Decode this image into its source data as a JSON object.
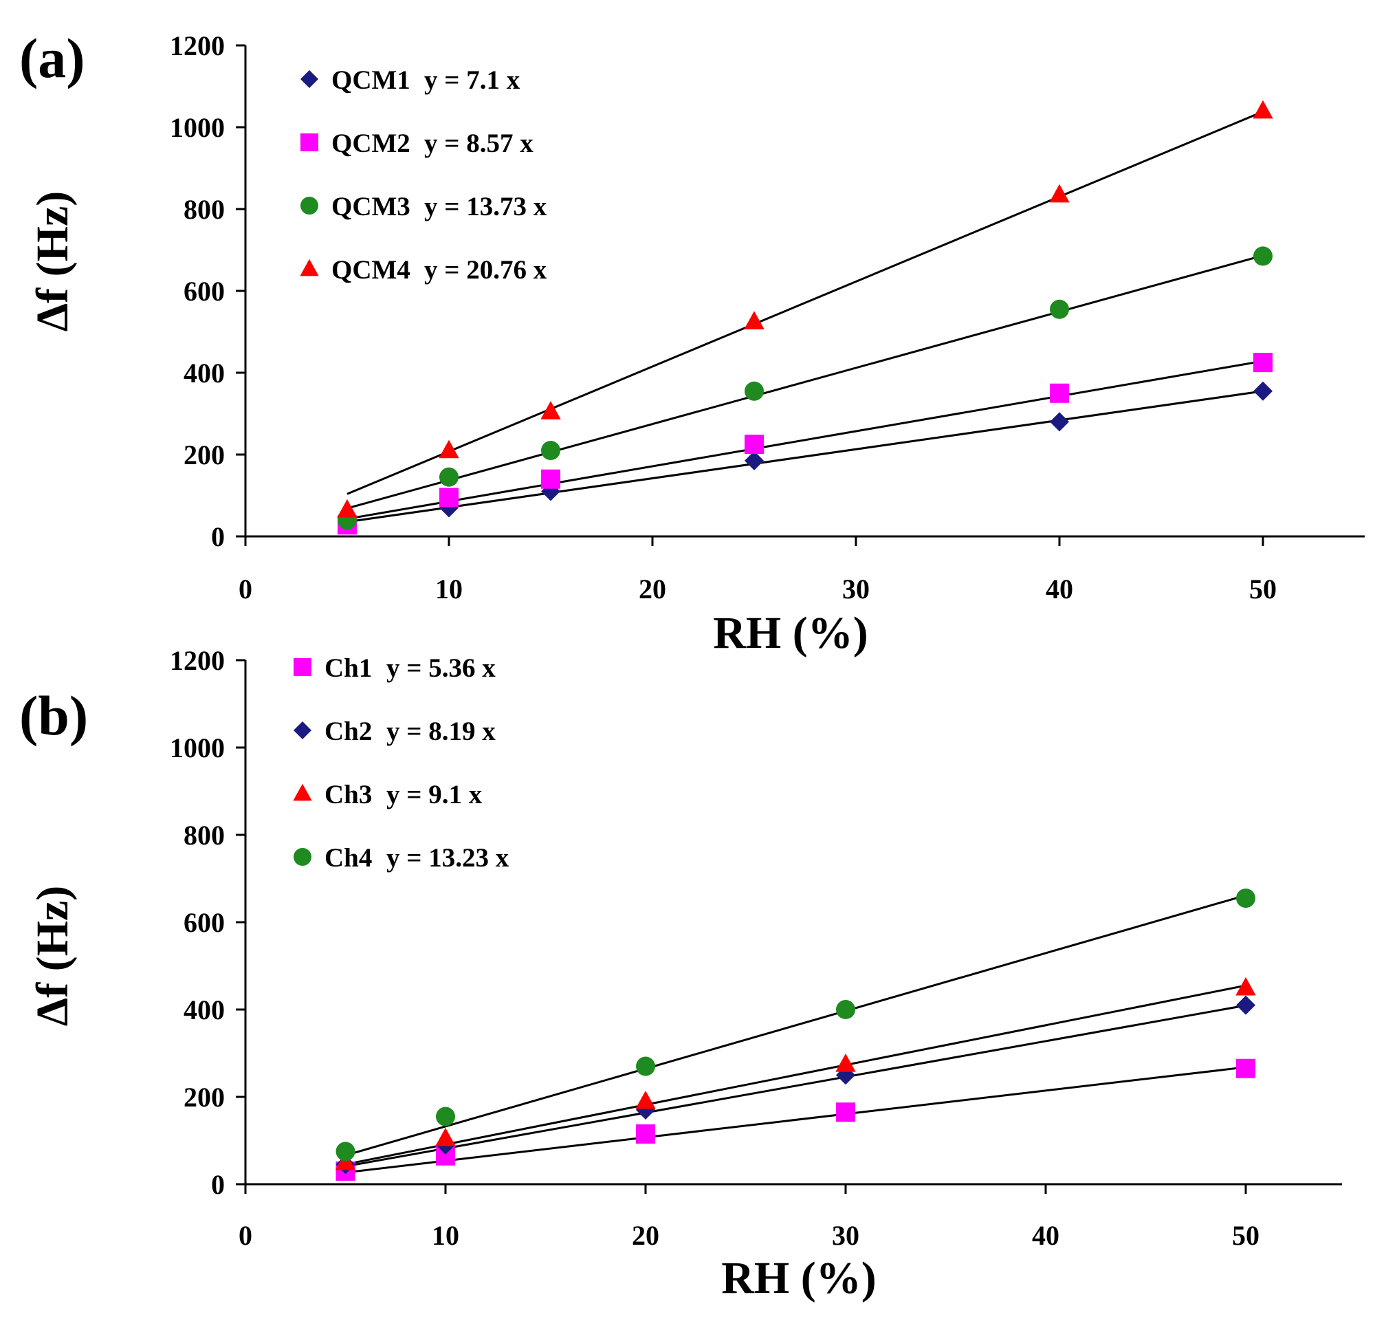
{
  "chart_data": [
    {
      "type": "scatter",
      "panel_label": "(a)",
      "xlabel": "RH (%)",
      "ylabel": "Δf (Hz)",
      "xlim": [
        0,
        55
      ],
      "ylim": [
        0,
        1200
      ],
      "xticks": [
        0,
        10,
        20,
        30,
        40,
        50
      ],
      "yticks": [
        0,
        200,
        400,
        600,
        800,
        1000,
        1200
      ],
      "grid": false,
      "legend_position": "top-left",
      "series": [
        {
          "name": "QCM1",
          "equation": "y = 7.1 x",
          "slope": 7.1,
          "marker": "diamond",
          "color": "#1a1a80",
          "x": [
            5,
            10,
            15,
            25,
            40,
            50
          ],
          "y": [
            35,
            70,
            110,
            185,
            280,
            355
          ]
        },
        {
          "name": "QCM2",
          "equation": "y = 8.57 x",
          "slope": 8.57,
          "marker": "square",
          "color": "#ff00ff",
          "x": [
            5,
            10,
            15,
            25,
            40,
            50
          ],
          "y": [
            28,
            95,
            140,
            225,
            350,
            425
          ]
        },
        {
          "name": "QCM3",
          "equation": "y = 13.73 x",
          "slope": 13.73,
          "marker": "circle",
          "color": "#1f8a1f",
          "x": [
            5,
            10,
            15,
            25,
            40,
            50
          ],
          "y": [
            40,
            145,
            210,
            355,
            555,
            685
          ]
        },
        {
          "name": "QCM4",
          "equation": "y = 20.76 x",
          "slope": 20.76,
          "marker": "triangle",
          "color": "#ff0000",
          "x": [
            5,
            10,
            15,
            25,
            40,
            50
          ],
          "y": [
            65,
            210,
            305,
            525,
            835,
            1040
          ]
        }
      ]
    },
    {
      "type": "scatter",
      "panel_label": "(b)",
      "xlabel": "RH (%)",
      "ylabel": "Δf (Hz)",
      "xlim": [
        0,
        55
      ],
      "ylim": [
        0,
        1200
      ],
      "xticks": [
        0,
        10,
        20,
        30,
        40,
        50
      ],
      "yticks": [
        0,
        200,
        400,
        600,
        800,
        1000,
        1200
      ],
      "grid": false,
      "legend_position": "top-left",
      "series": [
        {
          "name": "Ch1",
          "equation": "y = 5.36 x",
          "slope": 5.36,
          "marker": "square",
          "color": "#ff00ff",
          "x": [
            5,
            10,
            20,
            30,
            50
          ],
          "y": [
            30,
            65,
            115,
            165,
            265
          ]
        },
        {
          "name": "Ch2",
          "equation": "y = 8.19 x",
          "slope": 8.19,
          "marker": "diamond",
          "color": "#1a1a80",
          "x": [
            5,
            10,
            20,
            30,
            50
          ],
          "y": [
            45,
            90,
            170,
            250,
            410
          ]
        },
        {
          "name": "Ch3",
          "equation": "y = 9.1 x",
          "slope": 9.1,
          "marker": "triangle",
          "color": "#ff0000",
          "x": [
            5,
            10,
            20,
            30,
            50
          ],
          "y": [
            50,
            105,
            190,
            275,
            450
          ]
        },
        {
          "name": "Ch4",
          "equation": "y = 13.23 x",
          "slope": 13.23,
          "marker": "circle",
          "color": "#1f8a1f",
          "x": [
            5,
            10,
            20,
            30,
            50
          ],
          "y": [
            75,
            155,
            270,
            400,
            655
          ]
        }
      ]
    }
  ]
}
